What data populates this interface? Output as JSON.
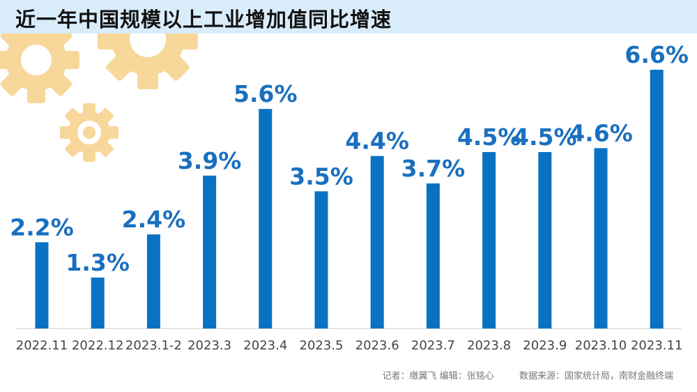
{
  "chart_data": {
    "type": "bar",
    "title": "近一年中国规模以上工业增加值同比增速",
    "categories": [
      "2022.11",
      "2022.12",
      "2023.1-2",
      "2023.3",
      "2023.4",
      "2023.5",
      "2023.6",
      "2023.7",
      "2023.8",
      "2023.9",
      "2023.10",
      "2023.11"
    ],
    "values": [
      2.2,
      1.3,
      2.4,
      3.9,
      5.6,
      3.5,
      4.4,
      3.7,
      4.5,
      4.5,
      4.6,
      6.6
    ],
    "value_labels": [
      "2.2%",
      "1.3%",
      "2.4%",
      "3.9%",
      "5.6%",
      "3.5%",
      "4.4%",
      "3.7%",
      "4.5%",
      "4.5%",
      "4.6%",
      "6.6%"
    ],
    "unit": "%",
    "xlabel": "",
    "ylabel": "",
    "ylim": [
      0,
      6.6
    ],
    "grid": false,
    "legend": "none"
  },
  "credits": {
    "reporter": "记者：缴翼飞",
    "editor": "编辑：张铭心",
    "source": "数据来源：国家统计局，南财金融终端"
  },
  "colors": {
    "bar": "#0a72c3",
    "label": "#1a6fbf",
    "title_band": "#d9ecf9",
    "gear": "#f8d79a",
    "axis": "#cccccc"
  }
}
